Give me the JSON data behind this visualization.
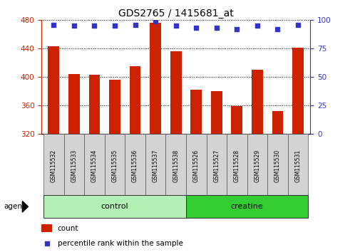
{
  "title": "GDS2765 / 1415681_at",
  "samples": [
    "GSM115532",
    "GSM115533",
    "GSM115534",
    "GSM115535",
    "GSM115536",
    "GSM115537",
    "GSM115538",
    "GSM115526",
    "GSM115527",
    "GSM115528",
    "GSM115529",
    "GSM115530",
    "GSM115531"
  ],
  "counts": [
    443,
    404,
    403,
    396,
    415,
    476,
    436,
    382,
    380,
    359,
    410,
    352,
    441
  ],
  "percentiles": [
    96,
    95,
    95,
    95,
    96,
    99,
    95,
    93,
    93,
    92,
    95,
    92,
    96
  ],
  "groups": [
    {
      "label": "control",
      "indices": [
        0,
        1,
        2,
        3,
        4,
        5,
        6
      ],
      "color": "#b3f0b3"
    },
    {
      "label": "creatine",
      "indices": [
        7,
        8,
        9,
        10,
        11,
        12
      ],
      "color": "#33cc33"
    }
  ],
  "y_min": 320,
  "y_max": 480,
  "y_ticks": [
    320,
    360,
    400,
    440,
    480
  ],
  "y_right_ticks": [
    0,
    25,
    50,
    75,
    100
  ],
  "bar_color": "#cc2200",
  "dot_color": "#3333cc",
  "bar_bottom": 320,
  "agent_label": "agent",
  "legend_count_label": "count",
  "legend_pct_label": "percentile rank within the sample"
}
